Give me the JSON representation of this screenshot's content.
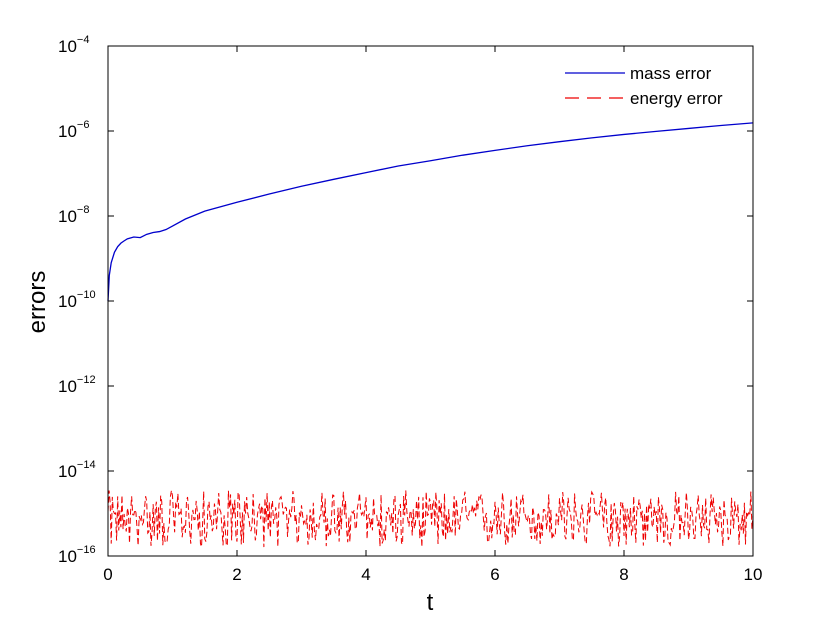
{
  "chart_data": {
    "type": "line",
    "xlabel": "t",
    "ylabel": "errors",
    "xlim": [
      0,
      10
    ],
    "ylim": [
      1e-16,
      0.0001
    ],
    "yscale": "log",
    "grid": false,
    "legend_position": "top-right",
    "x_ticks": [
      {
        "value": 0,
        "label": "0"
      },
      {
        "value": 2,
        "label": "2"
      },
      {
        "value": 4,
        "label": "4"
      },
      {
        "value": 6,
        "label": "6"
      },
      {
        "value": 8,
        "label": "8"
      },
      {
        "value": 10,
        "label": "10"
      }
    ],
    "y_ticks": [
      {
        "value": 1e-16,
        "base": "10",
        "exp": "−16"
      },
      {
        "value": 1e-14,
        "base": "10",
        "exp": "−14"
      },
      {
        "value": 1e-12,
        "base": "10",
        "exp": "−12"
      },
      {
        "value": 1e-10,
        "base": "10",
        "exp": "−10"
      },
      {
        "value": 1e-08,
        "base": "10",
        "exp": "−8"
      },
      {
        "value": 1e-06,
        "base": "10",
        "exp": "−6"
      },
      {
        "value": 0.0001,
        "base": "10",
        "exp": "−4"
      }
    ],
    "series": [
      {
        "name": "mass error",
        "color": "#0000cc",
        "style": "solid",
        "x": [
          0,
          0.02,
          0.05,
          0.1,
          0.15,
          0.2,
          0.25,
          0.3,
          0.4,
          0.5,
          0.6,
          0.7,
          0.8,
          0.9,
          1.0,
          1.2,
          1.5,
          2.0,
          2.5,
          3.0,
          3.5,
          4.0,
          4.5,
          5.0,
          5.5,
          6.0,
          6.5,
          7.0,
          7.5,
          8.0,
          8.5,
          9.0,
          9.5,
          10.0
        ],
        "y": [
          1e-10,
          4e-10,
          8e-10,
          1.4e-09,
          1.9e-09,
          2.3e-09,
          2.6e-09,
          2.9e-09,
          3.2e-09,
          3.1e-09,
          3.7e-09,
          4.1e-09,
          4.3e-09,
          4.8e-09,
          5.8e-09,
          8.5e-09,
          1.3e-08,
          2.1e-08,
          3.3e-08,
          5e-08,
          7.3e-08,
          1.05e-07,
          1.5e-07,
          2e-07,
          2.7e-07,
          3.5e-07,
          4.5e-07,
          5.6e-07,
          6.9e-07,
          8.3e-07,
          9.8e-07,
          1.15e-06,
          1.35e-06,
          1.55e-06
        ]
      },
      {
        "name": "energy error",
        "color": "#ee0000",
        "style": "dashed",
        "noise_band": {
          "min": 1.6e-16,
          "max": 3.5e-15,
          "typical": 9e-16,
          "samples_per_unit": 60
        }
      }
    ]
  }
}
